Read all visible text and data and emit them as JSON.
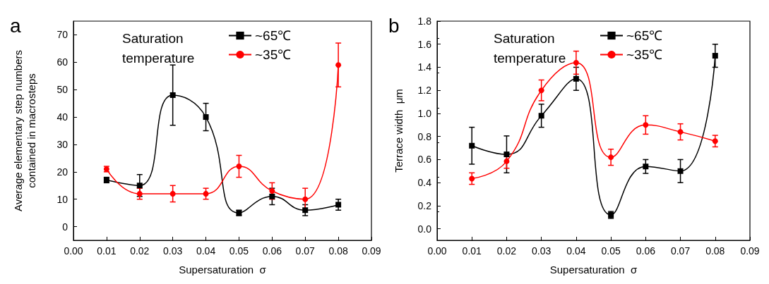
{
  "chart_data": [
    {
      "type": "line",
      "title": "a",
      "legend_title": "Saturation\ntemperature",
      "xlabel": "Supersaturation  σ",
      "ylabel": "Average elementary step numbers\ncontained in macrosteps",
      "x": [
        0.01,
        0.02,
        0.03,
        0.04,
        0.05,
        0.06,
        0.07,
        0.08
      ],
      "series": [
        {
          "name": "~65℃",
          "color": "#000000",
          "marker": "square",
          "values": [
            17,
            15,
            48,
            40,
            5,
            11,
            6,
            8
          ],
          "errors": [
            1,
            4,
            11,
            5,
            1,
            3,
            2,
            2
          ]
        },
        {
          "name": "~35℃",
          "color": "#ff0000",
          "marker": "circle",
          "values": [
            21,
            12,
            12,
            12,
            22,
            13,
            10,
            59
          ],
          "errors": [
            1,
            2,
            3,
            2,
            4,
            3,
            4,
            8
          ]
        }
      ],
      "xlim": [
        0,
        0.09
      ],
      "xticks": [
        {
          "value": 0,
          "label": "0.00"
        },
        0.01,
        0.02,
        0.03,
        0.04,
        0.05,
        0.06,
        0.07,
        0.08,
        0.09
      ],
      "ylim": [
        -5,
        75
      ],
      "yticks": [
        0,
        10,
        20,
        30,
        40,
        50,
        60,
        70
      ],
      "grid": false,
      "legend": "top right"
    },
    {
      "type": "line",
      "title": "b",
      "legend_title": "Saturation\ntemperature",
      "xlabel": "Supersaturation  σ",
      "ylabel": "Terrace width  μm",
      "x": [
        0.01,
        0.02,
        0.03,
        0.04,
        0.05,
        0.06,
        0.07,
        0.08
      ],
      "series": [
        {
          "name": "~65℃",
          "color": "#000000",
          "marker": "square",
          "values": [
            0.72,
            0.645,
            0.98,
            1.3,
            0.12,
            0.54,
            0.5,
            1.5
          ],
          "errors": [
            0.16,
            0.16,
            0.1,
            0.1,
            0.03,
            0.06,
            0.1,
            0.1
          ]
        },
        {
          "name": "~35℃",
          "color": "#ff0000",
          "marker": "circle",
          "values": [
            0.435,
            0.585,
            1.2,
            1.44,
            0.62,
            0.9,
            0.84,
            0.76
          ],
          "errors": [
            0.05,
            0.06,
            0.09,
            0.1,
            0.07,
            0.08,
            0.07,
            0.05
          ]
        }
      ],
      "xlim": [
        0,
        0.09
      ],
      "xticks": [
        {
          "value": 0,
          "label": "0.00"
        },
        0.01,
        0.02,
        0.03,
        0.04,
        0.05,
        0.06,
        0.07,
        0.08,
        0.09
      ],
      "ylim": [
        -0.1,
        1.8
      ],
      "yticks": [
        {
          "value": 0,
          "label": "0.0"
        },
        0.2,
        0.4,
        0.6,
        0.8,
        {
          "value": 1,
          "label": "1.0"
        },
        1.2,
        1.4,
        1.6,
        1.8
      ],
      "grid": false,
      "legend": "top right"
    }
  ]
}
